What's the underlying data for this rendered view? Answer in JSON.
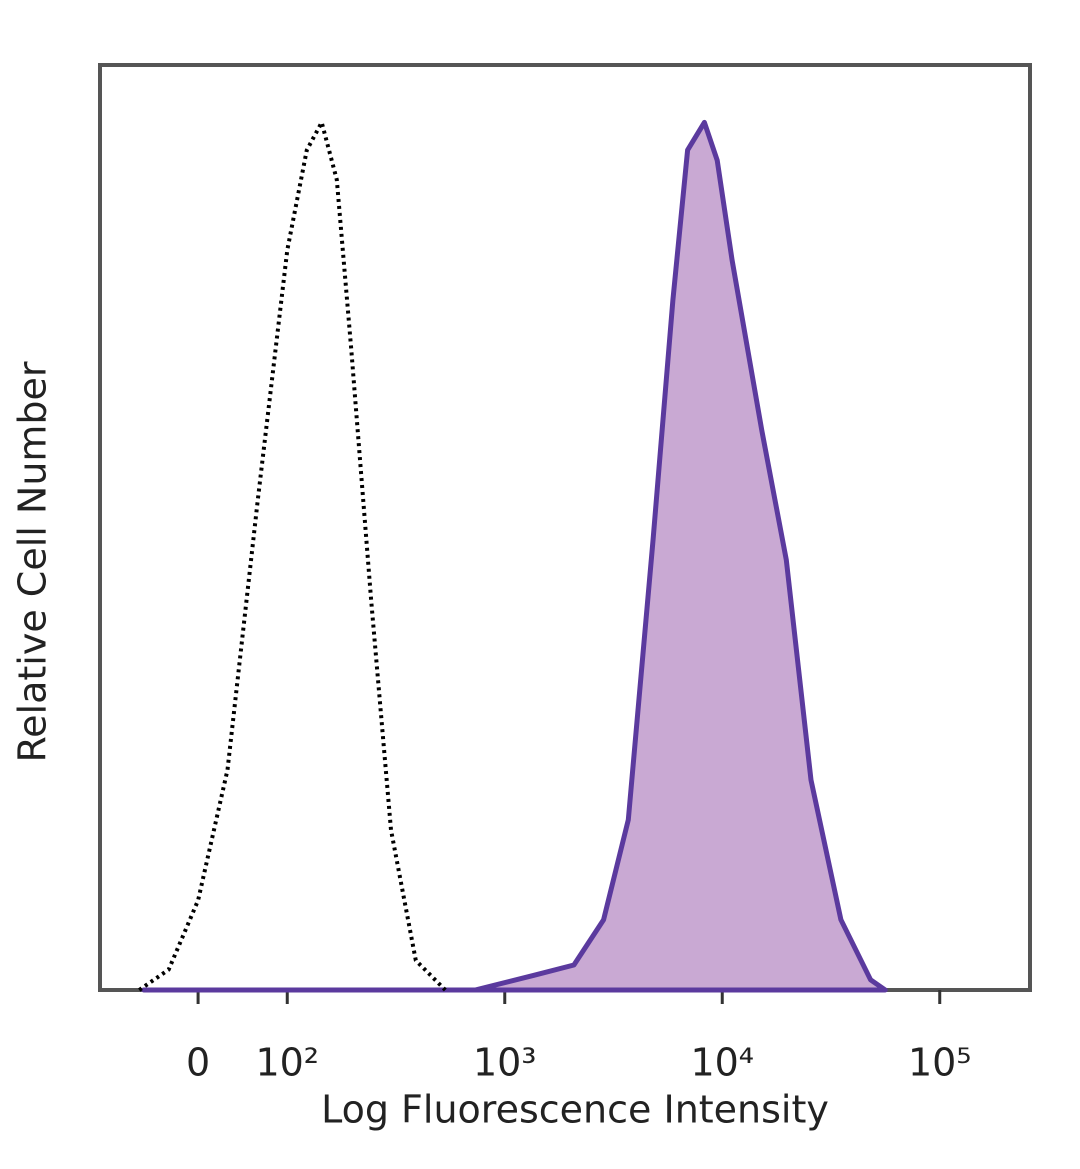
{
  "chart_data": {
    "type": "line",
    "xlabel": "Log Fluorescence Intensity",
    "ylabel": "Relative Cell Number",
    "xscale": "biexponential",
    "xlim": [
      -110,
      260000
    ],
    "ylim": [
      0,
      100
    ],
    "xticks": [
      0,
      {
        "value": 100,
        "label": "10²"
      },
      {
        "value": 1000,
        "label": "10³"
      },
      {
        "value": 10000,
        "label": "10⁴"
      },
      {
        "value": 100000,
        "label": "10⁵"
      }
    ],
    "series": [
      {
        "color": "#000000",
        "style": "dotted",
        "x": [
          -66,
          -33,
          0,
          33,
          67,
          100,
          123,
          144,
          169,
          197,
          243,
          300,
          390,
          533
        ],
        "values": [
          0,
          2.2,
          9.7,
          23.8,
          53,
          80,
          90.8,
          93.8,
          87.6,
          69.2,
          42.2,
          17.3,
          3.2,
          0
        ]
      },
      {
        "color": "#5b3a9e",
        "fill": "#c9a9d3",
        "style": "solid",
        "x": [
          -61,
          731,
          1369,
          2080,
          2848,
          3700,
          4806,
          5930,
          6930,
          8280,
          9480,
          11100,
          15200,
          19700,
          25600,
          35100,
          48100,
          56200
        ],
        "values": [
          0,
          0,
          1.6,
          2.7,
          7.6,
          18.4,
          48.6,
          74.6,
          90.8,
          93.8,
          89.7,
          78.9,
          60.5,
          46.5,
          22.7,
          7.6,
          1.1,
          0
        ]
      }
    ]
  }
}
